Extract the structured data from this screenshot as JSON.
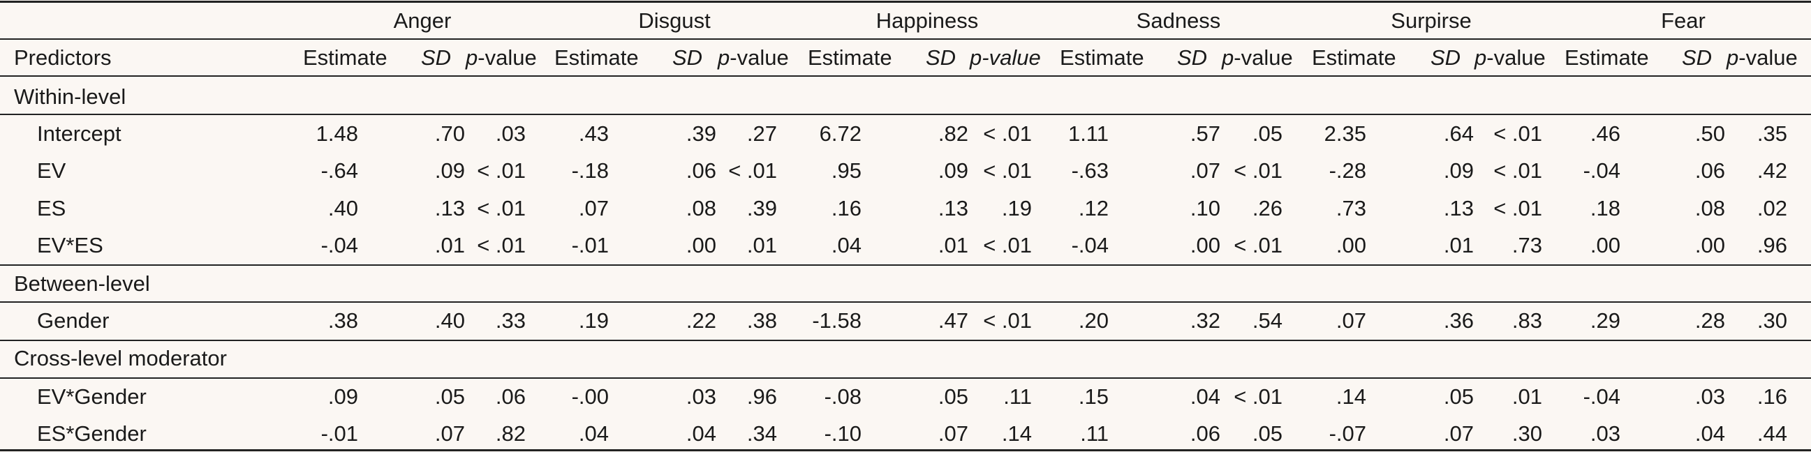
{
  "groups": [
    "Anger",
    "Disgust",
    "Happiness",
    "Sadness",
    "Surpirse",
    "Fear"
  ],
  "header": {
    "predictors": "Predictors",
    "estimate": "Estimate",
    "sd": "SD",
    "p_prefix": "p",
    "p_suffix": "-value"
  },
  "sections": [
    {
      "label": "Within-level",
      "rows": [
        {
          "name": "Intercept",
          "values": [
            [
              "1.48",
              ".70",
              ".03"
            ],
            [
              ".43",
              ".39",
              ".27"
            ],
            [
              "6.72",
              ".82",
              "< .01"
            ],
            [
              "1.11",
              ".57",
              ".05"
            ],
            [
              "2.35",
              ".64",
              "< .01"
            ],
            [
              ".46",
              ".50",
              ".35"
            ]
          ]
        },
        {
          "name": "EV",
          "values": [
            [
              "-.64",
              ".09",
              "< .01"
            ],
            [
              "-.18",
              ".06",
              "< .01"
            ],
            [
              ".95",
              ".09",
              "< .01"
            ],
            [
              "-.63",
              ".07",
              "< .01"
            ],
            [
              "-.28",
              ".09",
              "< .01"
            ],
            [
              "-.04",
              ".06",
              ".42"
            ]
          ]
        },
        {
          "name": "ES",
          "values": [
            [
              ".40",
              ".13",
              "< .01"
            ],
            [
              ".07",
              ".08",
              ".39"
            ],
            [
              ".16",
              ".13",
              ".19"
            ],
            [
              ".12",
              ".10",
              ".26"
            ],
            [
              ".73",
              ".13",
              "< .01"
            ],
            [
              ".18",
              ".08",
              ".02"
            ]
          ]
        },
        {
          "name": "EV*ES",
          "values": [
            [
              "-.04",
              ".01",
              "< .01"
            ],
            [
              "-.01",
              ".00",
              ".01"
            ],
            [
              ".04",
              ".01",
              "< .01"
            ],
            [
              "-.04",
              ".00",
              "< .01"
            ],
            [
              ".00",
              ".01",
              ".73"
            ],
            [
              ".00",
              ".00",
              ".96"
            ]
          ]
        }
      ]
    },
    {
      "label": "Between-level",
      "rows": [
        {
          "name": "Gender",
          "values": [
            [
              ".38",
              ".40",
              ".33"
            ],
            [
              ".19",
              ".22",
              ".38"
            ],
            [
              "-1.58",
              ".47",
              "< .01"
            ],
            [
              ".20",
              ".32",
              ".54"
            ],
            [
              ".07",
              ".36",
              ".83"
            ],
            [
              ".29",
              ".28",
              ".30"
            ]
          ]
        }
      ]
    },
    {
      "label": "Cross-level moderator",
      "rows": [
        {
          "name": "EV*Gender",
          "values": [
            [
              ".09",
              ".05",
              ".06"
            ],
            [
              "-.00",
              ".03",
              ".96"
            ],
            [
              "-.08",
              ".05",
              ".11"
            ],
            [
              ".15",
              ".04",
              "< .01"
            ],
            [
              ".14",
              ".05",
              ".01"
            ],
            [
              "-.04",
              ".03",
              ".16"
            ]
          ]
        },
        {
          "name": "ES*Gender",
          "values": [
            [
              "-.01",
              ".07",
              ".82"
            ],
            [
              ".04",
              ".04",
              ".34"
            ],
            [
              "-.10",
              ".07",
              ".14"
            ],
            [
              ".11",
              ".06",
              ".05"
            ],
            [
              "-.07",
              ".07",
              ".30"
            ],
            [
              ".03",
              ".04",
              ".44"
            ]
          ]
        }
      ]
    }
  ]
}
